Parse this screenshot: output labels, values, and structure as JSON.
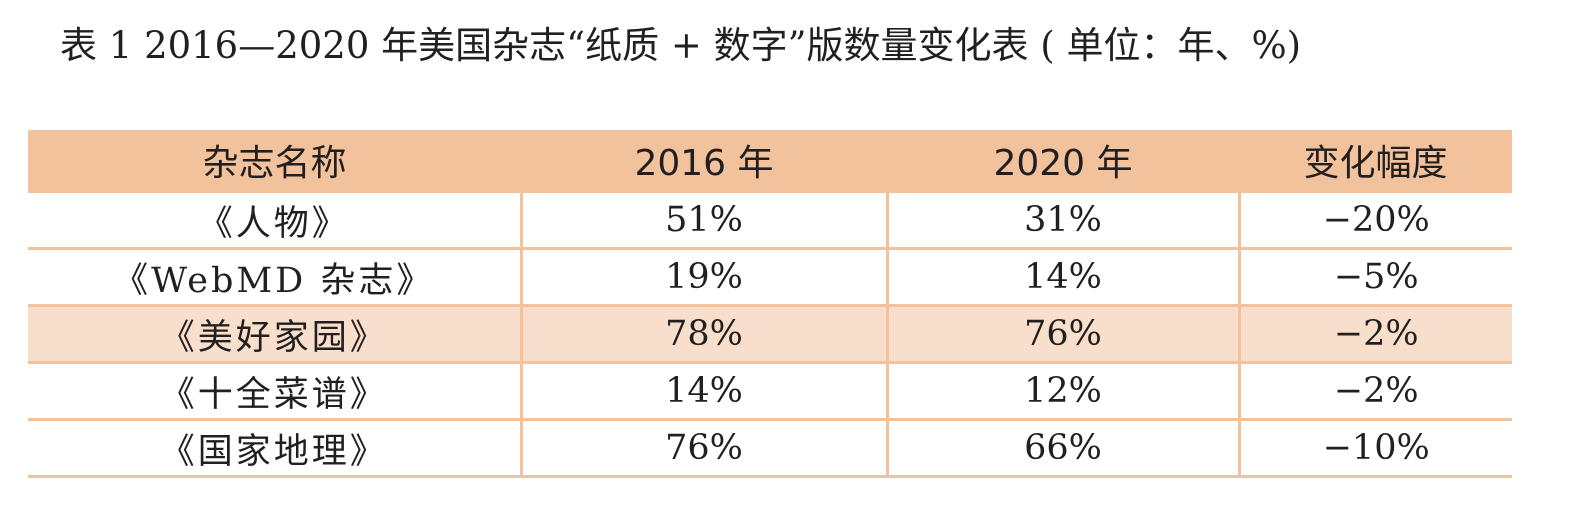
{
  "caption": "表 1  2016—2020 年美国杂志“纸质 + 数字”版数量变化表 ( 单位：年、%)",
  "colors": {
    "header_bg": "#f2c29c",
    "shaded_row_bg": "#f8dfcb",
    "rule": "#f2c29c"
  },
  "chart_data": {
    "type": "table",
    "columns": [
      "杂志名称",
      "2016 年",
      "2020 年",
      "变化幅度"
    ],
    "rows": [
      {
        "name": "《人物》",
        "y2016": "51%",
        "y2020": "31%",
        "change": "−20%"
      },
      {
        "name": "《WebMD 杂志》",
        "y2016": "19%",
        "y2020": "14%",
        "change": "−5%"
      },
      {
        "name": "《美好家园》",
        "y2016": "78%",
        "y2020": "76%",
        "change": "−2%"
      },
      {
        "name": "《十全菜谱》",
        "y2016": "14%",
        "y2020": "12%",
        "change": "−2%"
      },
      {
        "name": "《国家地理》",
        "y2016": "76%",
        "y2020": "66%",
        "change": "−10%"
      }
    ],
    "shaded_rows": [
      2
    ]
  }
}
